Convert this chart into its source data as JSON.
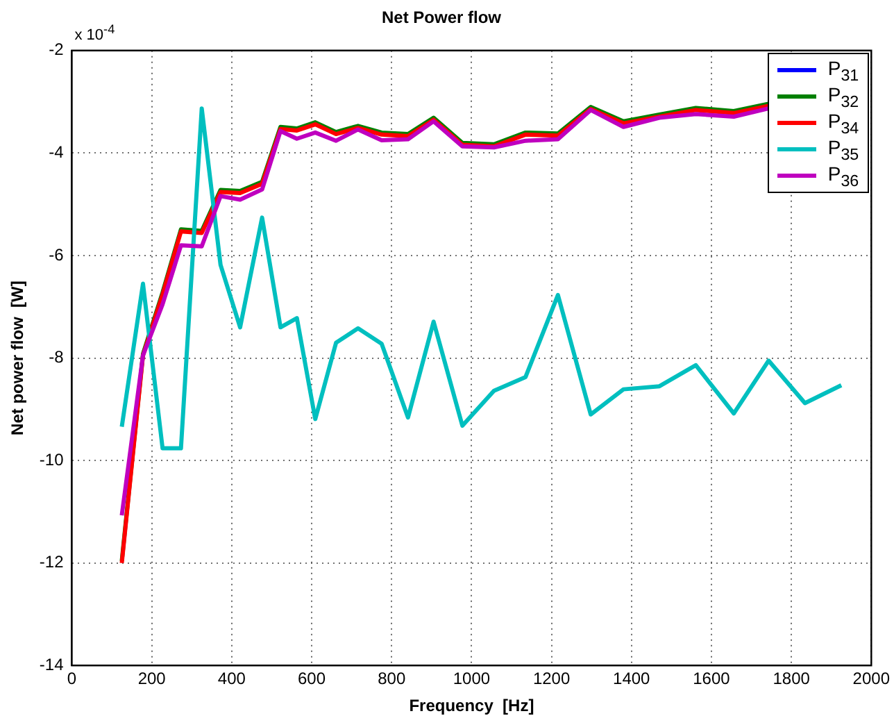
{
  "chart_data": {
    "type": "line",
    "title": "Net Power flow",
    "xlabel": "Frequency  [Hz]",
    "ylabel": "Net power flow  [W]",
    "annotations": [
      "x 10$^{-4}$"
    ],
    "x": [
      125,
      178,
      227,
      273,
      325,
      372,
      421,
      476,
      522,
      563,
      609,
      661,
      716,
      775,
      841,
      905,
      977,
      1056,
      1135,
      1216,
      1298,
      1380,
      1470,
      1561,
      1656,
      1743,
      1834,
      1925
    ],
    "series": [
      {
        "name": "P$_{31}$",
        "color": "#0000ff",
        "values": [
          null,
          null,
          null,
          null,
          null,
          null,
          null,
          null,
          null,
          null,
          null,
          null,
          null,
          null,
          null,
          null,
          null,
          null,
          null,
          null,
          null,
          null,
          null,
          null,
          null,
          null,
          null,
          null
        ]
      },
      {
        "name": "P$_{32}$",
        "color": "#008000",
        "values": [
          -11.96,
          -7.92,
          -6.72,
          -5.49,
          -5.52,
          -4.72,
          -4.74,
          -4.56,
          -3.49,
          -3.52,
          -3.4,
          -3.59,
          -3.47,
          -3.6,
          -3.63,
          -3.31,
          -3.8,
          -3.83,
          -3.6,
          -3.62,
          -3.1,
          -3.38,
          -3.25,
          -3.12,
          -3.18,
          -3.04,
          null,
          null
        ]
      },
      {
        "name": "P$_{34}$",
        "color": "#ff0000",
        "values": [
          -12.0,
          -7.95,
          -6.76,
          -5.53,
          -5.56,
          -4.76,
          -4.78,
          -4.6,
          -3.53,
          -3.56,
          -3.44,
          -3.63,
          -3.51,
          -3.64,
          -3.67,
          -3.35,
          -3.84,
          -3.87,
          -3.64,
          -3.66,
          -3.14,
          -3.42,
          -3.29,
          -3.16,
          -3.22,
          -3.08,
          null,
          null
        ]
      },
      {
        "name": "P$_{35}$",
        "color": "#00bfbf",
        "values": [
          -9.34,
          -6.55,
          -9.76,
          -9.76,
          -3.13,
          -6.18,
          -7.4,
          -5.26,
          -7.4,
          -7.22,
          -9.19,
          -7.7,
          -7.42,
          -7.72,
          -9.16,
          -7.29,
          -9.32,
          -8.64,
          -8.37,
          -6.77,
          -9.1,
          -8.61,
          -8.55,
          -8.14,
          -9.08,
          -8.05,
          -8.88,
          -8.53
        ]
      },
      {
        "name": "P$_{36}$",
        "color": "#bf00bf",
        "values": [
          -11.07,
          -7.95,
          -6.95,
          -5.8,
          -5.82,
          -4.84,
          -4.91,
          -4.71,
          -3.57,
          -3.72,
          -3.6,
          -3.76,
          -3.54,
          -3.75,
          -3.73,
          -3.38,
          -3.87,
          -3.89,
          -3.76,
          -3.73,
          -3.16,
          -3.49,
          -3.31,
          -3.24,
          -3.29,
          -3.13,
          null,
          null
        ]
      }
    ],
    "xlim": [
      0,
      2000
    ],
    "xticks": [
      0,
      200,
      400,
      600,
      800,
      1000,
      1200,
      1400,
      1600,
      1800,
      2000
    ],
    "ylim": [
      -14,
      -2
    ],
    "yticks": [
      -14,
      -12,
      -10,
      -8,
      -6,
      -4,
      -2
    ],
    "grid": true,
    "legend": "top right",
    "marker": "none",
    "line_style": "solid"
  }
}
